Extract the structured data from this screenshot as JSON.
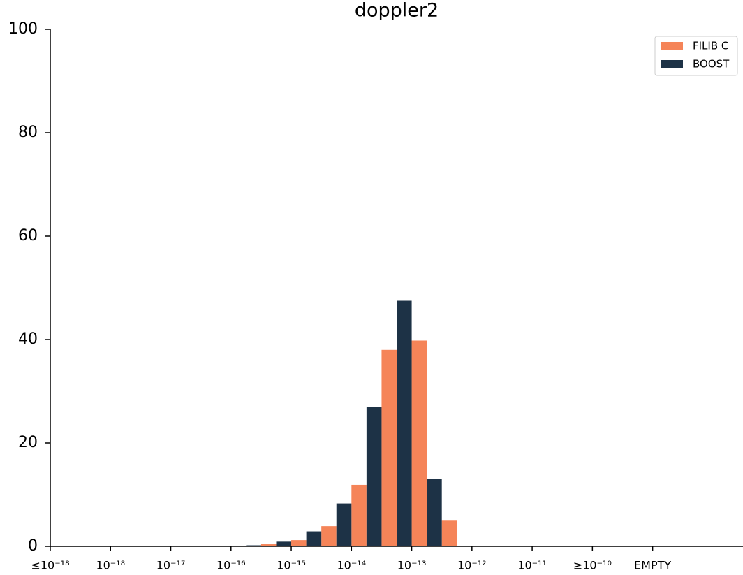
{
  "chart_data": {
    "type": "histogram",
    "title": "doppler2",
    "bins": [
      3,
      3.5,
      4,
      4.5,
      5,
      5.5,
      6,
      6.5,
      7
    ],
    "series": [
      {
        "name": "FILIB C",
        "color": "#f58458",
        "values": [
          0,
          0.4,
          1.2,
          3.9,
          11.9,
          38,
          39.8,
          5.1
        ]
      },
      {
        "name": "BOOST",
        "color": "#1d3246",
        "values": [
          0.2,
          0.9,
          2.9,
          8.3,
          27,
          47.5,
          13,
          0
        ]
      }
    ],
    "xlim": [
      0,
      11.5
    ],
    "xticks": [
      {
        "value": 0,
        "label": "≤10⁻¹⁸"
      },
      {
        "value": 1,
        "label": "10⁻¹⁸"
      },
      {
        "value": 2,
        "label": "10⁻¹⁷"
      },
      {
        "value": 3,
        "label": "10⁻¹⁶"
      },
      {
        "value": 4,
        "label": "10⁻¹⁵"
      },
      {
        "value": 5,
        "label": "10⁻¹⁴"
      },
      {
        "value": 6,
        "label": "10⁻¹³"
      },
      {
        "value": 7,
        "label": "10⁻¹²"
      },
      {
        "value": 8,
        "label": "10⁻¹¹"
      },
      {
        "value": 9,
        "label": "≥10⁻¹⁰"
      },
      {
        "value": 10,
        "label": "EMPTY"
      }
    ],
    "ylim": [
      0,
      100
    ],
    "yticks": [
      0,
      20,
      40,
      60,
      80,
      100
    ],
    "legend": "upper right"
  }
}
